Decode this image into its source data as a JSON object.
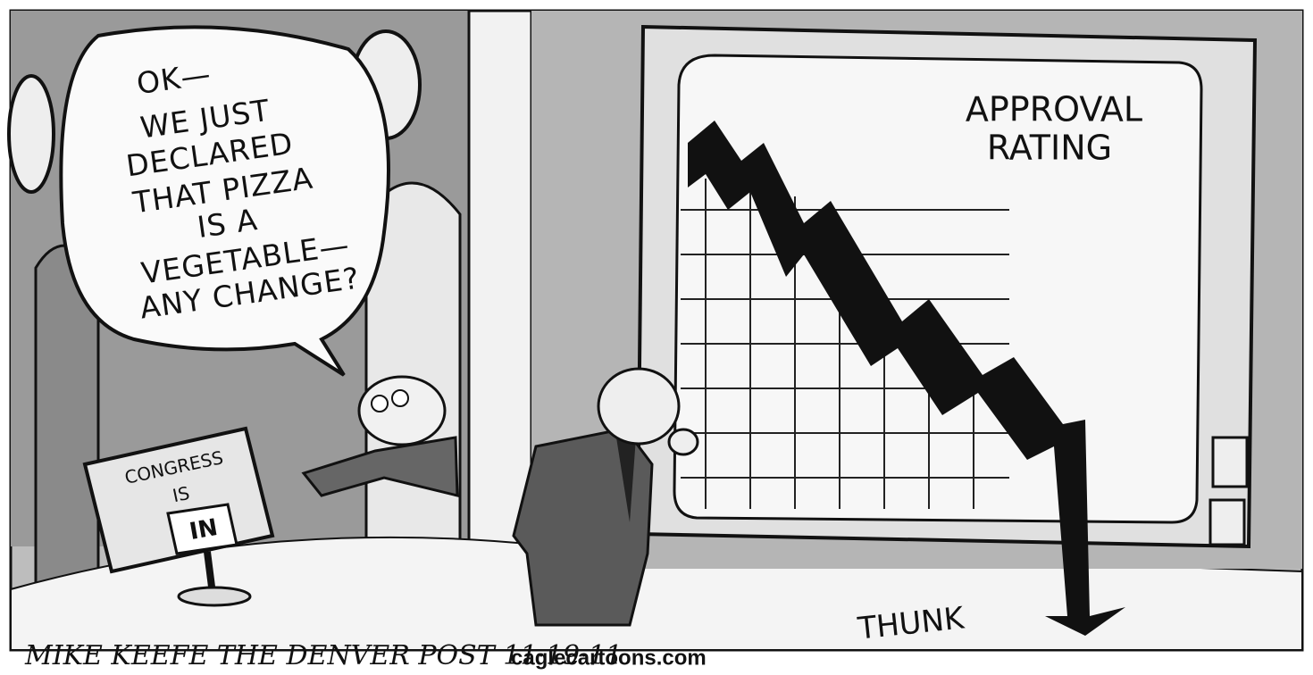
{
  "speech_bubble": {
    "lines": [
      "OK—",
      "WE JUST",
      "DECLARED",
      "THAT PIZZA",
      "IS A",
      "VEGETABLE—",
      "ANY CHANGE?"
    ]
  },
  "sign": {
    "lines": [
      "CONGRESS",
      "IS"
    ],
    "card": "IN"
  },
  "chart": {
    "title_lines": [
      "APPROVAL",
      "RATING"
    ]
  },
  "sound_effect": "THUNK",
  "credits": {
    "signature": "MIKE KEEFE THE DENVER POST 11·19·11",
    "website": "caglecartoons.com"
  }
}
